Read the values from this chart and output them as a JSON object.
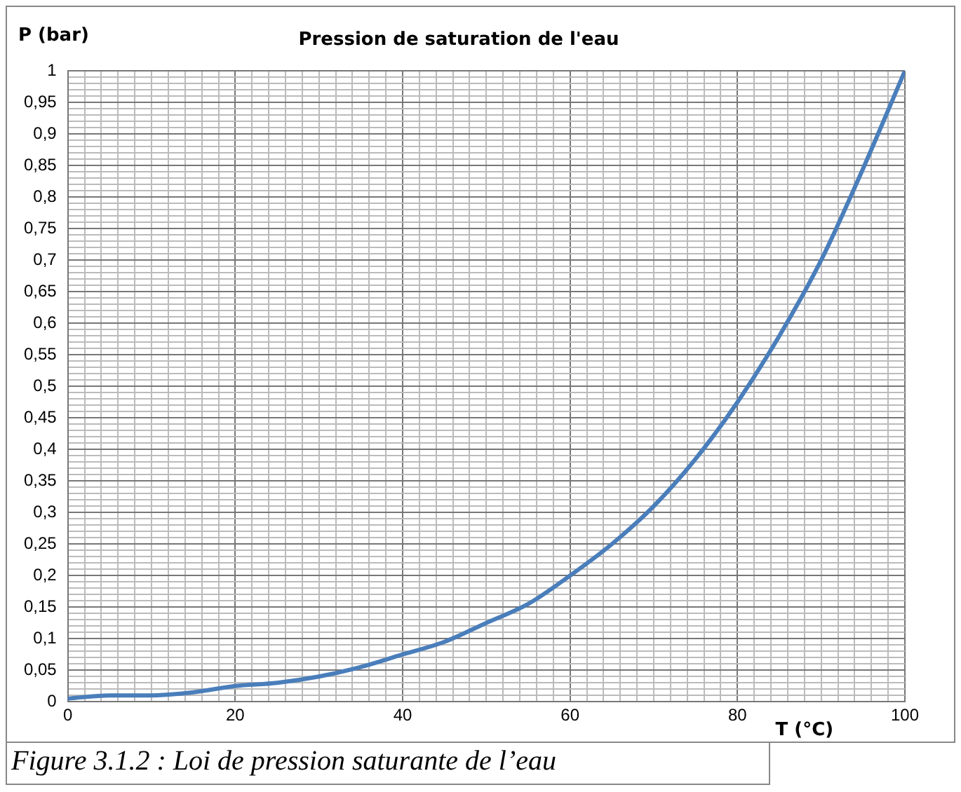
{
  "chart_data": {
    "type": "line",
    "title": "Pression de saturation de l'eau",
    "xlabel": "T (°C)",
    "ylabel": "P (bar)",
    "annotations": [
      "Figure 3.1.2 : Loi de pression saturante de l’eau"
    ],
    "x": [
      0,
      5,
      10,
      15,
      20,
      25,
      30,
      35,
      40,
      45,
      50,
      55,
      60,
      65,
      70,
      75,
      80,
      85,
      90,
      95,
      100
    ],
    "series": [
      {
        "color": "#4a7ebb",
        "values": [
          0.005,
          0.01,
          0.01,
          0.015,
          0.025,
          0.03,
          0.04,
          0.055,
          0.075,
          0.095,
          0.125,
          0.155,
          0.2,
          0.25,
          0.31,
          0.385,
          0.475,
          0.58,
          0.7,
          0.845,
          1
        ]
      }
    ],
    "xlim": [
      0,
      100
    ],
    "ylim": [
      0,
      1
    ],
    "xticks": [
      0,
      {
        "value": 2,
        "label": null
      },
      {
        "value": 4,
        "label": null
      },
      {
        "value": 6,
        "label": null
      },
      {
        "value": 8,
        "label": null
      },
      {
        "value": 10,
        "label": null
      },
      {
        "value": 12,
        "label": null
      },
      {
        "value": 14,
        "label": null
      },
      {
        "value": 16,
        "label": null
      },
      {
        "value": 18,
        "label": null
      },
      20,
      {
        "value": 22,
        "label": null
      },
      {
        "value": 24,
        "label": null
      },
      {
        "value": 26,
        "label": null
      },
      {
        "value": 28,
        "label": null
      },
      {
        "value": 30,
        "label": null
      },
      {
        "value": 32,
        "label": null
      },
      {
        "value": 34,
        "label": null
      },
      {
        "value": 36,
        "label": null
      },
      {
        "value": 38,
        "label": null
      },
      40,
      {
        "value": 42,
        "label": null
      },
      {
        "value": 44,
        "label": null
      },
      {
        "value": 46,
        "label": null
      },
      {
        "value": 48,
        "label": null
      },
      {
        "value": 50,
        "label": null
      },
      {
        "value": 52,
        "label": null
      },
      {
        "value": 54,
        "label": null
      },
      {
        "value": 56,
        "label": null
      },
      {
        "value": 58,
        "label": null
      },
      60,
      {
        "value": 62,
        "label": null
      },
      {
        "value": 64,
        "label": null
      },
      {
        "value": 66,
        "label": null
      },
      {
        "value": 68,
        "label": null
      },
      {
        "value": 70,
        "label": null
      },
      {
        "value": 72,
        "label": null
      },
      {
        "value": 74,
        "label": null
      },
      {
        "value": 76,
        "label": null
      },
      {
        "value": 78,
        "label": null
      },
      80,
      {
        "value": 82,
        "label": null
      },
      {
        "value": 84,
        "label": null
      },
      {
        "value": 86,
        "label": null
      },
      {
        "value": 88,
        "label": null
      },
      {
        "value": 90,
        "label": null
      },
      {
        "value": 92,
        "label": null
      },
      {
        "value": 94,
        "label": null
      },
      {
        "value": 96,
        "label": null
      },
      {
        "value": 98,
        "label": null
      },
      100
    ],
    "yticks": [
      0,
      {
        "value": 0.01,
        "label": null
      },
      {
        "value": 0.02,
        "label": null
      },
      {
        "value": 0.03,
        "label": null
      },
      {
        "value": 0.04,
        "label": null
      },
      {
        "value": 0.05,
        "label": "0,05"
      },
      {
        "value": 0.06,
        "label": null
      },
      {
        "value": 0.07,
        "label": null
      },
      {
        "value": 0.08,
        "label": null
      },
      {
        "value": 0.09,
        "label": null
      },
      {
        "value": 0.1,
        "label": "0,1"
      },
      {
        "value": 0.11,
        "label": null
      },
      {
        "value": 0.12,
        "label": null
      },
      {
        "value": 0.13,
        "label": null
      },
      {
        "value": 0.14,
        "label": null
      },
      {
        "value": 0.15,
        "label": "0,15"
      },
      {
        "value": 0.16,
        "label": null
      },
      {
        "value": 0.17,
        "label": null
      },
      {
        "value": 0.18,
        "label": null
      },
      {
        "value": 0.19,
        "label": null
      },
      {
        "value": 0.2,
        "label": "0,2"
      },
      {
        "value": 0.21,
        "label": null
      },
      {
        "value": 0.22,
        "label": null
      },
      {
        "value": 0.23,
        "label": null
      },
      {
        "value": 0.24,
        "label": null
      },
      {
        "value": 0.25,
        "label": "0,25"
      },
      {
        "value": 0.26,
        "label": null
      },
      {
        "value": 0.27,
        "label": null
      },
      {
        "value": 0.28,
        "label": null
      },
      {
        "value": 0.29,
        "label": null
      },
      {
        "value": 0.3,
        "label": "0,3"
      },
      {
        "value": 0.31,
        "label": null
      },
      {
        "value": 0.32,
        "label": null
      },
      {
        "value": 0.33,
        "label": null
      },
      {
        "value": 0.34,
        "label": null
      },
      {
        "value": 0.35,
        "label": "0,35"
      },
      {
        "value": 0.36,
        "label": null
      },
      {
        "value": 0.37,
        "label": null
      },
      {
        "value": 0.38,
        "label": null
      },
      {
        "value": 0.39,
        "label": null
      },
      {
        "value": 0.4,
        "label": "0,4"
      },
      {
        "value": 0.41,
        "label": null
      },
      {
        "value": 0.42,
        "label": null
      },
      {
        "value": 0.43,
        "label": null
      },
      {
        "value": 0.44,
        "label": null
      },
      {
        "value": 0.45,
        "label": "0,45"
      },
      {
        "value": 0.46,
        "label": null
      },
      {
        "value": 0.47,
        "label": null
      },
      {
        "value": 0.48,
        "label": null
      },
      {
        "value": 0.49,
        "label": null
      },
      {
        "value": 0.5,
        "label": "0,5"
      },
      {
        "value": 0.51,
        "label": null
      },
      {
        "value": 0.52,
        "label": null
      },
      {
        "value": 0.53,
        "label": null
      },
      {
        "value": 0.54,
        "label": null
      },
      {
        "value": 0.55,
        "label": "0,55"
      },
      {
        "value": 0.56,
        "label": null
      },
      {
        "value": 0.57,
        "label": null
      },
      {
        "value": 0.58,
        "label": null
      },
      {
        "value": 0.59,
        "label": null
      },
      {
        "value": 0.6,
        "label": "0,6"
      },
      {
        "value": 0.61,
        "label": null
      },
      {
        "value": 0.62,
        "label": null
      },
      {
        "value": 0.63,
        "label": null
      },
      {
        "value": 0.64,
        "label": null
      },
      {
        "value": 0.65,
        "label": "0,65"
      },
      {
        "value": 0.66,
        "label": null
      },
      {
        "value": 0.67,
        "label": null
      },
      {
        "value": 0.68,
        "label": null
      },
      {
        "value": 0.69,
        "label": null
      },
      {
        "value": 0.7,
        "label": "0,7"
      },
      {
        "value": 0.71,
        "label": null
      },
      {
        "value": 0.72,
        "label": null
      },
      {
        "value": 0.73,
        "label": null
      },
      {
        "value": 0.74,
        "label": null
      },
      {
        "value": 0.75,
        "label": "0,75"
      },
      {
        "value": 0.76,
        "label": null
      },
      {
        "value": 0.77,
        "label": null
      },
      {
        "value": 0.78,
        "label": null
      },
      {
        "value": 0.79,
        "label": null
      },
      {
        "value": 0.8,
        "label": "0,8"
      },
      {
        "value": 0.81,
        "label": null
      },
      {
        "value": 0.82,
        "label": null
      },
      {
        "value": 0.83,
        "label": null
      },
      {
        "value": 0.84,
        "label": null
      },
      {
        "value": 0.85,
        "label": "0,85"
      },
      {
        "value": 0.86,
        "label": null
      },
      {
        "value": 0.87,
        "label": null
      },
      {
        "value": 0.88,
        "label": null
      },
      {
        "value": 0.89,
        "label": null
      },
      {
        "value": 0.9,
        "label": "0,9"
      },
      {
        "value": 0.91,
        "label": null
      },
      {
        "value": 0.92,
        "label": null
      },
      {
        "value": 0.93,
        "label": null
      },
      {
        "value": 0.94,
        "label": null
      },
      {
        "value": 0.95,
        "label": "0,95"
      },
      {
        "value": 0.96,
        "label": null
      },
      {
        "value": 0.97,
        "label": null
      },
      {
        "value": 0.98,
        "label": null
      },
      {
        "value": 0.99,
        "label": null
      },
      1
    ],
    "grid": true,
    "legend": false,
    "marker": "none",
    "line_style": "solid"
  }
}
